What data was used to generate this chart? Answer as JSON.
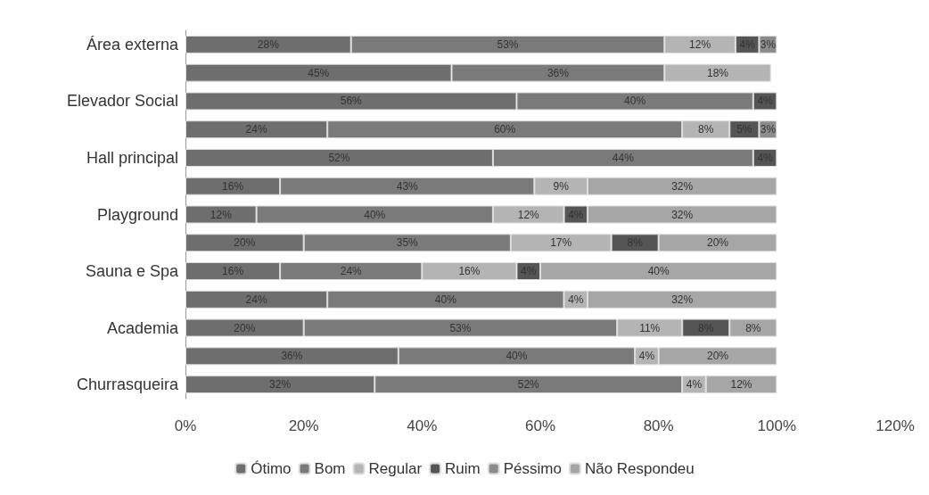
{
  "chart_data": {
    "type": "bar",
    "orientation": "horizontal",
    "stacked": true,
    "grid": false,
    "legend": "bottom",
    "categories": [
      "Área externa",
      null,
      "Elevador Social",
      null,
      "Hall principal",
      null,
      "Playground",
      null,
      "Sauna e Spa",
      null,
      "Academia",
      null,
      "Churrasqueira"
    ],
    "xlim": [
      0,
      120
    ],
    "xticks": [
      {
        "value": 0,
        "label": "0%"
      },
      {
        "value": 20,
        "label": "20%"
      },
      {
        "value": 40,
        "label": "40%"
      },
      {
        "value": 60,
        "label": "60%"
      },
      {
        "value": 80,
        "label": "80%"
      },
      {
        "value": 100,
        "label": "100%"
      },
      {
        "value": 120,
        "label": "120%"
      }
    ],
    "series": [
      {
        "name": "Ótimo",
        "color": "#6e6e6e",
        "values": [
          28,
          45,
          56,
          24,
          52,
          16,
          12,
          20,
          16,
          24,
          20,
          36,
          32
        ],
        "value_labels": [
          "28%",
          "45%",
          "56%",
          "24%",
          "52%",
          "16%",
          "12%",
          "20%",
          "16%",
          "24%",
          "20%",
          "36%",
          "32%"
        ]
      },
      {
        "name": "Bom",
        "color": "#7a7a7a",
        "values": [
          53,
          36,
          40,
          60,
          44,
          43,
          40,
          35,
          24,
          40,
          53,
          40,
          52
        ],
        "value_labels": [
          "53%",
          "36%",
          "40%",
          "60%",
          "44%",
          "43%",
          "40%",
          "35%",
          "24%",
          "40%",
          "53%",
          "40%",
          "52%"
        ]
      },
      {
        "name": "Regular",
        "color": "#b4b4b4",
        "values": [
          12,
          18,
          null,
          8,
          null,
          9,
          12,
          17,
          16,
          4,
          11,
          4,
          4
        ],
        "value_labels": [
          "12%",
          "18%",
          null,
          "8%",
          null,
          "9%",
          "12%",
          "17%",
          "16%",
          "4%",
          "11%",
          "4%",
          "4%"
        ]
      },
      {
        "name": "Ruim",
        "color": "#555555",
        "values": [
          4,
          null,
          4,
          5,
          4,
          null,
          4,
          8,
          4,
          null,
          8,
          null,
          null
        ],
        "value_labels": [
          "4%",
          null,
          "4%",
          "5%",
          "4%",
          null,
          "4%",
          "8%",
          "4%",
          null,
          "8%",
          null,
          null
        ]
      },
      {
        "name": "Péssimo",
        "color": "#8c8c8c",
        "values": [
          3,
          null,
          null,
          3,
          null,
          null,
          null,
          null,
          null,
          null,
          null,
          null,
          null
        ],
        "value_labels": [
          "3%",
          null,
          null,
          "3%",
          null,
          null,
          null,
          null,
          null,
          null,
          null,
          null,
          null
        ]
      },
      {
        "name": "Não Respondeu",
        "color": "#a6a6a6",
        "values": [
          null,
          null,
          null,
          null,
          null,
          32,
          32,
          20,
          40,
          32,
          8,
          20,
          12
        ],
        "value_labels": [
          null,
          null,
          null,
          null,
          null,
          "32%",
          "32%",
          "20%",
          "40%",
          "32%",
          "8%",
          "20%",
          "12%"
        ]
      }
    ]
  }
}
